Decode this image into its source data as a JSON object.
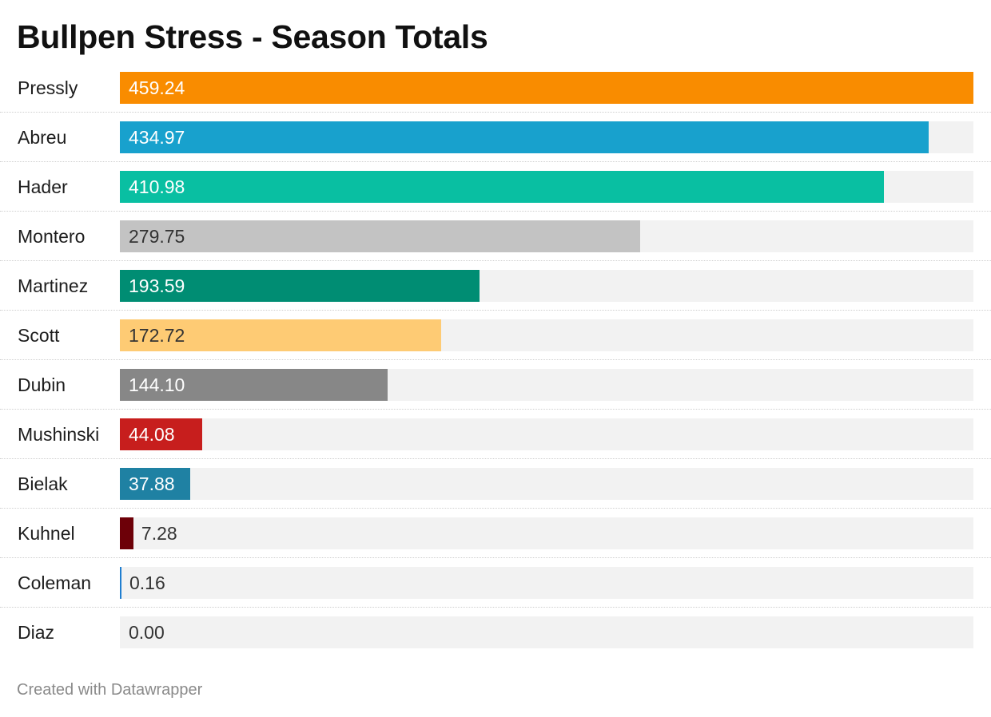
{
  "title": "Bullpen Stress - Season Totals",
  "footer": "Created with Datawrapper",
  "chart_data": {
    "type": "bar",
    "orientation": "horizontal",
    "title": "Bullpen Stress - Season Totals",
    "xlim": [
      0,
      459.24
    ],
    "grid": false,
    "categories": [
      "Pressly",
      "Abreu",
      "Hader",
      "Montero",
      "Martinez",
      "Scott",
      "Dubin",
      "Mushinski",
      "Bielak",
      "Kuhnel",
      "Coleman",
      "Diaz"
    ],
    "values": [
      459.24,
      434.97,
      410.98,
      279.75,
      193.59,
      172.72,
      144.1,
      44.08,
      37.88,
      7.28,
      0.16,
      0.0
    ],
    "value_labels": [
      "459.24",
      "434.97",
      "410.98",
      "279.75",
      "193.59",
      "172.72",
      "144.10",
      "44.08",
      "37.88",
      "7.28",
      "0.16",
      "0.00"
    ],
    "colors": [
      "#f98c00",
      "#18a1cd",
      "#09bfa2",
      "#c3c3c3",
      "#008d73",
      "#fecb74",
      "#878787",
      "#c71e1d",
      "#1f81a3",
      "#6d0008",
      "#1f7ed0",
      "#cccccc"
    ],
    "label_colors": [
      "#ffffff",
      "#ffffff",
      "#ffffff",
      "#333333",
      "#ffffff",
      "#333333",
      "#ffffff",
      "#ffffff",
      "#ffffff",
      "#333333",
      "#333333",
      "#333333"
    ]
  }
}
